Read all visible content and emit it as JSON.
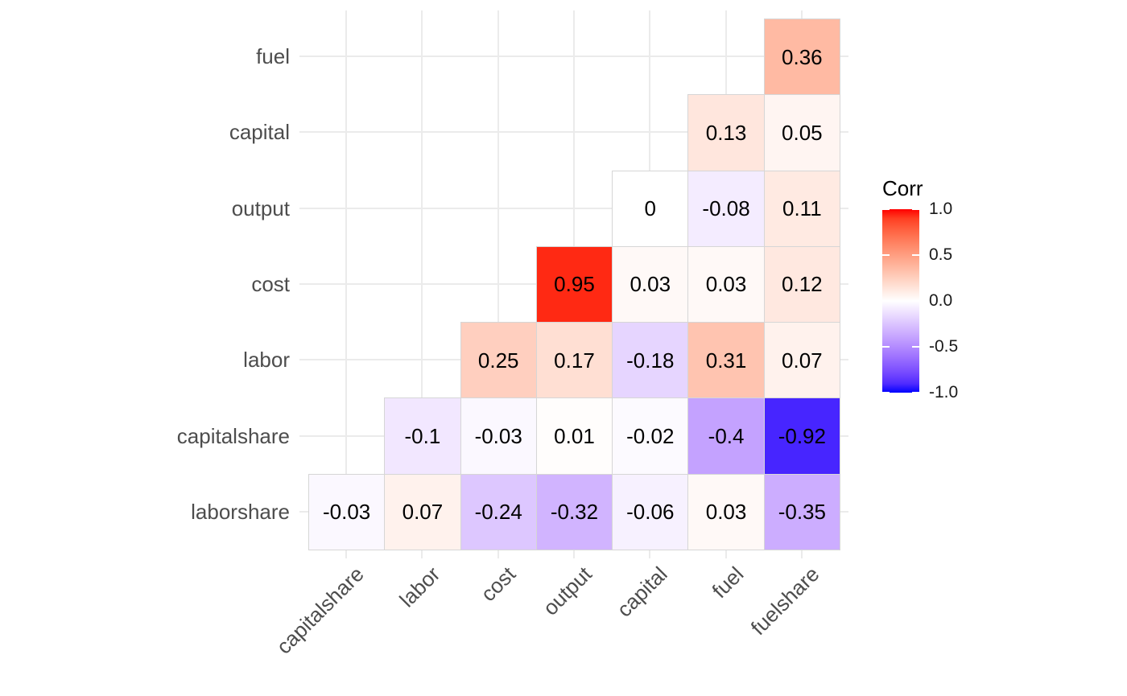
{
  "chart_data": {
    "type": "heatmap",
    "subtype": "correlation-matrix-lower-triangle",
    "legend_title": "Corr",
    "x_categories": [
      "capitalshare",
      "labor",
      "cost",
      "output",
      "capital",
      "fuel",
      "fuelshare"
    ],
    "y_categories": [
      "fuel",
      "capital",
      "output",
      "cost",
      "labor",
      "capitalshare",
      "laborshare"
    ],
    "matrix": [
      [
        null,
        null,
        null,
        null,
        null,
        null,
        0.36
      ],
      [
        null,
        null,
        null,
        null,
        null,
        0.13,
        0.05
      ],
      [
        null,
        null,
        null,
        null,
        0,
        -0.08,
        0.11
      ],
      [
        null,
        null,
        null,
        0.95,
        0.03,
        0.03,
        0.12
      ],
      [
        null,
        null,
        0.25,
        0.17,
        -0.18,
        0.31,
        0.07
      ],
      [
        null,
        -0.1,
        -0.03,
        0.01,
        -0.02,
        -0.4,
        -0.92
      ],
      [
        -0.03,
        0.07,
        -0.24,
        -0.32,
        -0.06,
        0.03,
        -0.35
      ]
    ],
    "legend_ticks": [
      1.0,
      0.5,
      0.0,
      -0.5,
      -1.0
    ],
    "legend_tick_labels": [
      "1.0",
      "0.5",
      "0.0",
      "-0.5",
      "-1.0"
    ],
    "colorscale": {
      "low": "#0000FF",
      "mid": "#FFFFFF",
      "high": "#FF0000",
      "domain": [
        -1,
        1
      ],
      "interpolation": "lab"
    },
    "grid": true,
    "legend_position": "right",
    "x_label_angle_deg": 45
  },
  "colors": {
    "background": "#ffffff",
    "gridline": "#ebebeb",
    "tile_border": "#d6d6d6",
    "axis_text": "#4d4d4d",
    "cell_text": "#000000",
    "legend_title_text": "#000000",
    "legend_tick_text": "#1a1a1a",
    "legend_tick_mark": "#ffffff"
  }
}
